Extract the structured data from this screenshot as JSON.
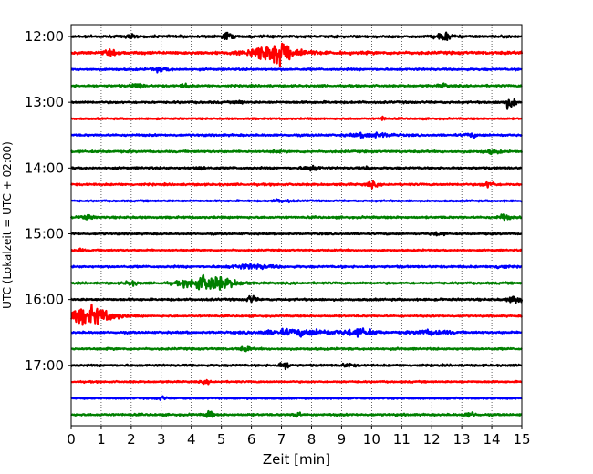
{
  "chart_data": {
    "type": "line",
    "chart_kind": "helicorder seismogram",
    "xlabel": "Zeit  [min]",
    "ylabel": "UTC (Lokalzeit = UTC + 02:00)",
    "xlim": [
      0,
      15
    ],
    "x_ticks": [
      0,
      1,
      2,
      3,
      4,
      5,
      6,
      7,
      8,
      9,
      10,
      11,
      12,
      13,
      14,
      15
    ],
    "x_tick_labels": [
      "0",
      "1",
      "2",
      "3",
      "4",
      "5",
      "6",
      "7",
      "8",
      "9",
      "10",
      "11",
      "12",
      "13",
      "14",
      "15"
    ],
    "y_tick_labels": [
      "12:00",
      "13:00",
      "14:00",
      "15:00",
      "16:00",
      "17:00"
    ],
    "y_tick_rows": [
      0,
      4,
      8,
      12,
      16,
      20
    ],
    "minutes_per_line": 15,
    "grid": {
      "x": true,
      "style": "dotted",
      "y": false
    },
    "color_cycle": [
      "#000000",
      "#ff0000",
      "#0000ff",
      "#008000"
    ],
    "traces": [
      {
        "start": "12:00",
        "color": "#000000",
        "base_amplitude": 0.06,
        "events": [
          {
            "minute": 5.2,
            "amplitude": 0.2,
            "duration_min": 0.3
          },
          {
            "minute": 12.4,
            "amplitude": 0.22,
            "duration_min": 0.5
          },
          {
            "minute": 2.0,
            "amplitude": 0.1,
            "duration_min": 0.3
          }
        ]
      },
      {
        "start": "12:15",
        "color": "#ff0000",
        "base_amplitude": 0.07,
        "events": [
          {
            "minute": 6.8,
            "amplitude": 0.55,
            "duration_min": 1.6
          },
          {
            "minute": 1.3,
            "amplitude": 0.1,
            "duration_min": 0.4
          }
        ]
      },
      {
        "start": "12:30",
        "color": "#0000ff",
        "base_amplitude": 0.05,
        "events": [
          {
            "minute": 3.0,
            "amplitude": 0.1,
            "duration_min": 0.6
          }
        ]
      },
      {
        "start": "12:45",
        "color": "#008000",
        "base_amplitude": 0.05,
        "events": [
          {
            "minute": 2.2,
            "amplitude": 0.12,
            "duration_min": 0.4
          },
          {
            "minute": 3.8,
            "amplitude": 0.1,
            "duration_min": 0.3
          },
          {
            "minute": 12.4,
            "amplitude": 0.1,
            "duration_min": 0.3
          }
        ]
      },
      {
        "start": "13:00",
        "color": "#000000",
        "base_amplitude": 0.05,
        "events": [
          {
            "minute": 14.6,
            "amplitude": 0.3,
            "duration_min": 0.4
          },
          {
            "minute": 5.6,
            "amplitude": 0.12,
            "duration_min": 0.2
          }
        ]
      },
      {
        "start": "13:15",
        "color": "#ff0000",
        "base_amplitude": 0.04,
        "events": [
          {
            "minute": 10.4,
            "amplitude": 0.1,
            "duration_min": 0.2
          }
        ]
      },
      {
        "start": "13:30",
        "color": "#0000ff",
        "base_amplitude": 0.05,
        "events": [
          {
            "minute": 10.0,
            "amplitude": 0.12,
            "duration_min": 1.2
          },
          {
            "minute": 13.3,
            "amplitude": 0.1,
            "duration_min": 0.4
          }
        ]
      },
      {
        "start": "13:45",
        "color": "#008000",
        "base_amplitude": 0.05,
        "events": [
          {
            "minute": 14.0,
            "amplitude": 0.1,
            "duration_min": 0.5
          },
          {
            "minute": 6.8,
            "amplitude": 0.08,
            "duration_min": 0.2
          }
        ]
      },
      {
        "start": "14:00",
        "color": "#000000",
        "base_amplitude": 0.05,
        "events": [
          {
            "minute": 8.0,
            "amplitude": 0.14,
            "duration_min": 0.5
          },
          {
            "minute": 4.3,
            "amplitude": 0.1,
            "duration_min": 0.3
          },
          {
            "minute": 9.9,
            "amplitude": 0.1,
            "duration_min": 0.2
          }
        ]
      },
      {
        "start": "14:15",
        "color": "#ff0000",
        "base_amplitude": 0.05,
        "events": [
          {
            "minute": 13.9,
            "amplitude": 0.16,
            "duration_min": 0.4
          },
          {
            "minute": 10.0,
            "amplitude": 0.12,
            "duration_min": 0.4
          }
        ]
      },
      {
        "start": "14:30",
        "color": "#0000ff",
        "base_amplitude": 0.04,
        "events": [
          {
            "minute": 7.0,
            "amplitude": 0.08,
            "duration_min": 0.6
          }
        ]
      },
      {
        "start": "14:45",
        "color": "#008000",
        "base_amplitude": 0.05,
        "events": [
          {
            "minute": 0.5,
            "amplitude": 0.12,
            "duration_min": 0.4
          },
          {
            "minute": 14.4,
            "amplitude": 0.14,
            "duration_min": 0.4
          }
        ]
      },
      {
        "start": "15:00",
        "color": "#000000",
        "base_amplitude": 0.04,
        "events": [
          {
            "minute": 12.2,
            "amplitude": 0.08,
            "duration_min": 0.5
          }
        ]
      },
      {
        "start": "15:15",
        "color": "#ff0000",
        "base_amplitude": 0.04,
        "events": [
          {
            "minute": 0.3,
            "amplitude": 0.08,
            "duration_min": 0.2
          }
        ]
      },
      {
        "start": "15:30",
        "color": "#0000ff",
        "base_amplitude": 0.05,
        "events": [
          {
            "minute": 6.0,
            "amplitude": 0.12,
            "duration_min": 1.4
          },
          {
            "minute": 14.3,
            "amplitude": 0.1,
            "duration_min": 0.4
          }
        ]
      },
      {
        "start": "15:45",
        "color": "#008000",
        "base_amplitude": 0.05,
        "events": [
          {
            "minute": 4.6,
            "amplitude": 0.42,
            "duration_min": 1.6
          },
          {
            "minute": 2.0,
            "amplitude": 0.12,
            "duration_min": 0.4
          }
        ]
      },
      {
        "start": "16:00",
        "color": "#000000",
        "base_amplitude": 0.05,
        "events": [
          {
            "minute": 6.0,
            "amplitude": 0.2,
            "duration_min": 0.3
          },
          {
            "minute": 14.8,
            "amplitude": 0.2,
            "duration_min": 0.5
          }
        ]
      },
      {
        "start": "16:15",
        "color": "#ff0000",
        "base_amplitude": 0.04,
        "events": [
          {
            "minute": 0.6,
            "amplitude": 0.5,
            "duration_min": 1.6
          }
        ]
      },
      {
        "start": "16:30",
        "color": "#0000ff",
        "base_amplitude": 0.05,
        "events": [
          {
            "minute": 7.6,
            "amplitude": 0.16,
            "duration_min": 2.4
          },
          {
            "minute": 9.6,
            "amplitude": 0.18,
            "duration_min": 1.0
          },
          {
            "minute": 12.0,
            "amplitude": 0.12,
            "duration_min": 1.2
          }
        ]
      },
      {
        "start": "16:45",
        "color": "#008000",
        "base_amplitude": 0.05,
        "events": [
          {
            "minute": 5.8,
            "amplitude": 0.1,
            "duration_min": 0.4
          }
        ]
      },
      {
        "start": "17:00",
        "color": "#000000",
        "base_amplitude": 0.05,
        "events": [
          {
            "minute": 7.1,
            "amplitude": 0.18,
            "duration_min": 0.4
          },
          {
            "minute": 9.2,
            "amplitude": 0.1,
            "duration_min": 0.4
          }
        ]
      },
      {
        "start": "17:15",
        "color": "#ff0000",
        "base_amplitude": 0.04,
        "events": [
          {
            "minute": 4.5,
            "amplitude": 0.08,
            "duration_min": 0.3
          }
        ]
      },
      {
        "start": "17:30",
        "color": "#0000ff",
        "base_amplitude": 0.04,
        "events": [
          {
            "minute": 3.0,
            "amplitude": 0.1,
            "duration_min": 0.3
          }
        ]
      },
      {
        "start": "17:45",
        "color": "#008000",
        "base_amplitude": 0.05,
        "events": [
          {
            "minute": 4.6,
            "amplitude": 0.26,
            "duration_min": 0.2
          },
          {
            "minute": 7.5,
            "amplitude": 0.22,
            "duration_min": 0.2
          },
          {
            "minute": 13.3,
            "amplitude": 0.12,
            "duration_min": 0.4
          }
        ]
      }
    ]
  }
}
